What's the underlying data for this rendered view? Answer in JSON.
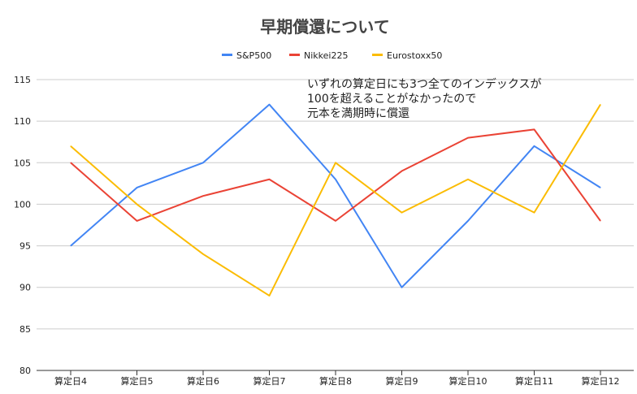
{
  "chart_data": {
    "type": "line",
    "title": "早期償還について",
    "xlabel": "",
    "ylabel": "",
    "ylim": [
      80,
      115
    ],
    "yticks": [
      80,
      85,
      90,
      95,
      100,
      105,
      110,
      115
    ],
    "grid": true,
    "legend_position": "top",
    "categories": [
      "算定日4",
      "算定日5",
      "算定日6",
      "算定日7",
      "算定日8",
      "算定日9",
      "算定日10",
      "算定日11",
      "算定日12"
    ],
    "series": [
      {
        "name": "S&P500",
        "color": "#4285f4",
        "values": [
          95,
          102,
          105,
          112,
          103,
          90,
          98,
          107,
          102
        ]
      },
      {
        "name": "Nikkei225",
        "color": "#ea4335",
        "values": [
          105,
          98,
          101,
          103,
          98,
          104,
          108,
          109,
          98
        ]
      },
      {
        "name": "Eurostoxx50",
        "color": "#fbbc04",
        "values": [
          107,
          100,
          94,
          89,
          105,
          99,
          103,
          99,
          112
        ]
      }
    ],
    "annotation": [
      "いずれの算定日にも3つ全てのインデックスが",
      "100を超えることがなかったので",
      "元本を満期時に償還"
    ]
  }
}
